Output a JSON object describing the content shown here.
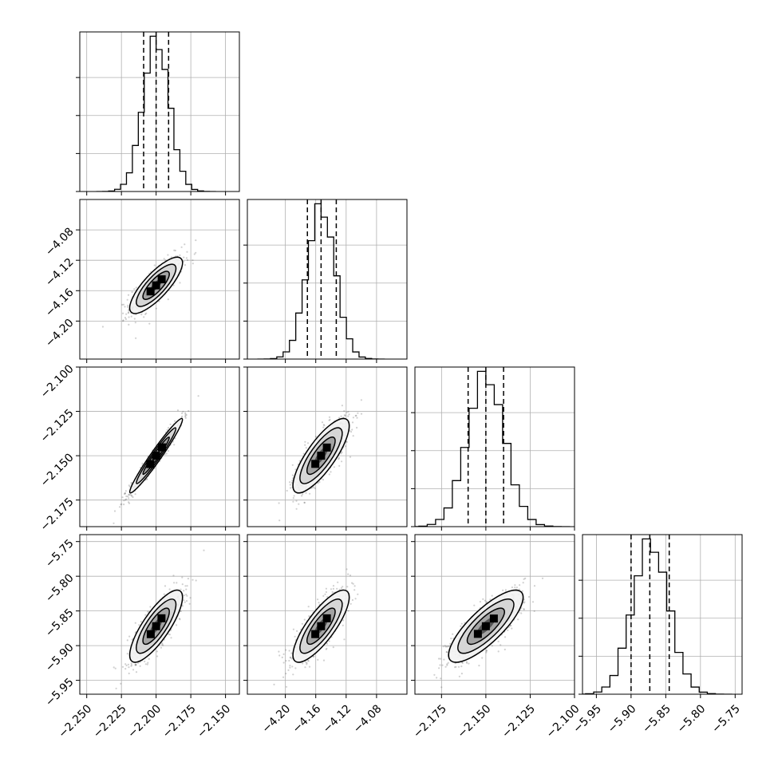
{
  "chart_data": {
    "type": "corner",
    "title": "",
    "params": [
      {
        "range": [
          -2.255,
          -2.14
        ],
        "ticks": [
          -2.25,
          -2.225,
          -2.2,
          -2.175,
          -2.15
        ],
        "tick_labels": [
          "−2.250",
          "−2.225",
          "−2.200",
          "−2.175",
          "−2.150"
        ],
        "mean": -2.2,
        "sd": 0.0095,
        "quantiles": [
          -2.209,
          -2.2,
          -2.191
        ]
      },
      {
        "range": [
          -4.25,
          -4.04
        ],
        "ticks": [
          -4.2,
          -4.16,
          -4.12,
          -4.08
        ],
        "tick_labels": [
          "−4.20",
          "−4.16",
          "−4.12",
          "−4.08"
        ],
        "mean": -4.153,
        "sd": 0.0185,
        "quantiles": [
          -4.171,
          -4.153,
          -4.133
        ]
      },
      {
        "range": [
          -2.19,
          -2.1
        ],
        "ticks": [
          -2.175,
          -2.15,
          -2.125,
          -2.1
        ],
        "tick_labels": [
          "−2.175",
          "−2.150",
          "−2.125",
          "−2.100"
        ],
        "mean": -2.15,
        "sd": 0.0105,
        "quantiles": [
          -2.16,
          -2.15,
          -2.14
        ]
      },
      {
        "range": [
          -5.97,
          -5.74
        ],
        "ticks": [
          -5.95,
          -5.9,
          -5.85,
          -5.8,
          -5.75
        ],
        "tick_labels": [
          "−5.95",
          "−5.90",
          "−5.85",
          "−5.80",
          "−5.75"
        ],
        "mean": -5.872,
        "sd": 0.026,
        "quantiles": [
          -5.9,
          -5.873,
          -5.845
        ]
      }
    ],
    "correlations": [
      [
        1,
        0.8,
        0.97,
        0.8
      ],
      [
        0.8,
        1,
        0.8,
        0.8
      ],
      [
        0.97,
        0.8,
        1,
        0.8
      ],
      [
        0.8,
        0.8,
        0.8,
        1
      ]
    ],
    "histogram_ylim": [
      0,
      1.05
    ],
    "histogram_yticks": [
      0.0,
      0.25,
      0.5,
      0.75
    ],
    "grid": true,
    "xlabel": "",
    "ylabel": ""
  },
  "colors": {
    "line": "#000000",
    "grid": "#b0b0b0",
    "scatter": "#555555"
  }
}
